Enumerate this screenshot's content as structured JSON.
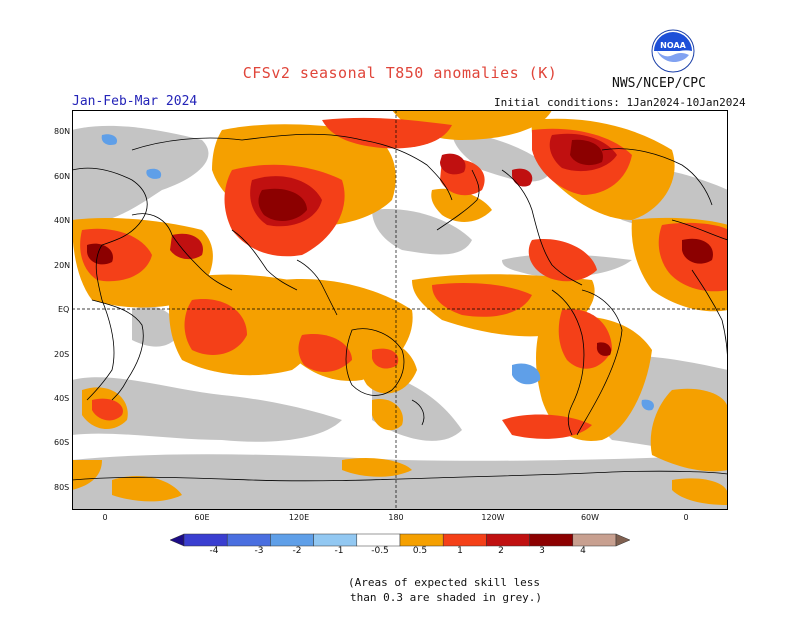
{
  "header": {
    "title": "CFSv2 seasonal T850 anomalies (K)",
    "agency": "NWS/NCEP/CPC",
    "season": "Jan-Feb-Mar 2024",
    "initial_conditions": "Initial conditions: 1Jan2024-10Jan2024"
  },
  "logo": {
    "icon": "noaa-logo-icon",
    "text": "NOAA"
  },
  "axes": {
    "lat_labels": [
      "80N",
      "60N",
      "40N",
      "20N",
      "EQ",
      "20S",
      "40S",
      "60S",
      "80S"
    ],
    "lon_labels": [
      "0",
      "60E",
      "120E",
      "180",
      "120W",
      "60W",
      "0"
    ]
  },
  "colorbar": {
    "ticks": [
      "-4",
      "-3",
      "-2",
      "-1",
      "-0.5",
      "0.5",
      "1",
      "2",
      "3",
      "4"
    ],
    "colors": [
      "#1c0c86",
      "#3a3ed0",
      "#4a6fe0",
      "#5f9fe8",
      "#92c8f2",
      "#ffffff",
      "#f5a000",
      "#f44018",
      "#c01010",
      "#8c0000",
      "#c8a090",
      "#806050"
    ]
  },
  "note": {
    "line1": "(Areas of expected skill less",
    "line2": "than 0.3 are shaded in grey.)"
  }
}
